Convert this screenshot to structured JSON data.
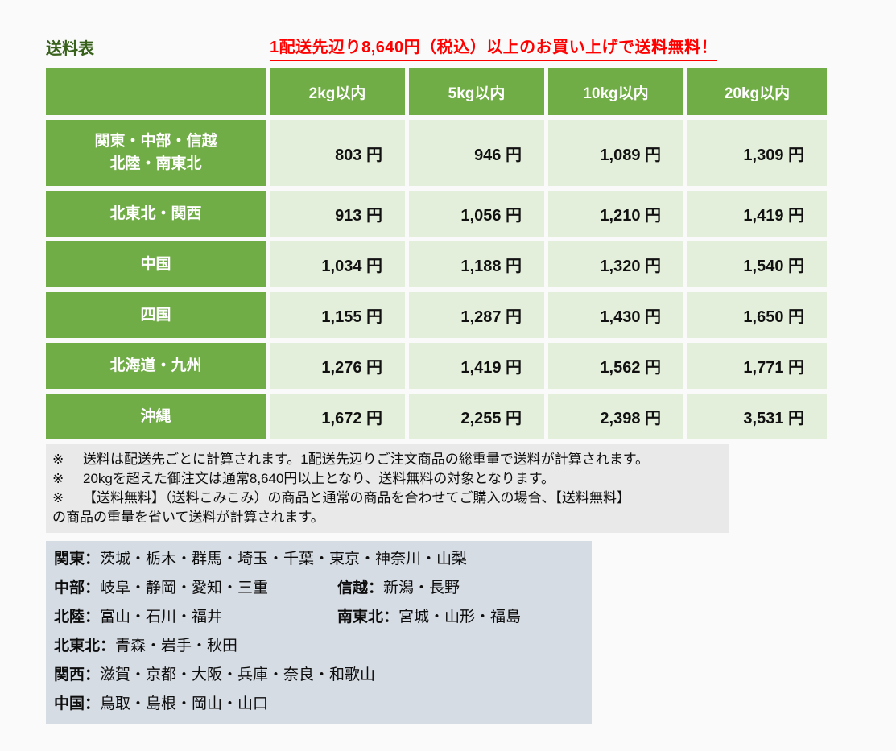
{
  "page": {
    "title": "送料表",
    "free_shipping_notice": "1配送先辺り8,640円（税込）以上のお買い上げで送料無料！"
  },
  "colors": {
    "title_green": "#38611c",
    "notice_red": "#ff0000",
    "header_green": "#71ad47",
    "cell_light_green": "#e3efdb",
    "notes_gray": "#e9e9e9",
    "legend_blue_gray": "#d6dce4",
    "page_background": "#fafafa"
  },
  "table": {
    "columns": [
      "2kg以内",
      "5kg以内",
      "10kg以内",
      "20kg以内"
    ],
    "rows": [
      {
        "region": "関東・中部・信越\n北陸・南東北",
        "values": [
          "803 円",
          "946 円",
          "1,089 円",
          "1,309 円"
        ]
      },
      {
        "region": "北東北・関西",
        "values": [
          "913 円",
          "1,056 円",
          "1,210 円",
          "1,419 円"
        ]
      },
      {
        "region": "中国",
        "values": [
          "1,034 円",
          "1,188 円",
          "1,320 円",
          "1,540 円"
        ]
      },
      {
        "region": "四国",
        "values": [
          "1,155 円",
          "1,287 円",
          "1,430 円",
          "1,650 円"
        ]
      },
      {
        "region": "北海道・九州",
        "values": [
          "1,276 円",
          "1,419 円",
          "1,562 円",
          "1,771 円"
        ]
      },
      {
        "region": "沖縄",
        "values": [
          "1,672 円",
          "2,255 円",
          "2,398 円",
          "3,531 円"
        ]
      }
    ]
  },
  "notes": {
    "lines": [
      {
        "marker": "※",
        "text": "送料は配送先ごとに計算されます。1配送先辺りご注文商品の総重量で送料が計算されます。"
      },
      {
        "marker": "※",
        "text": "20kgを超えた御注文は通常8,640円以上となり、送料無料の対象となります。"
      },
      {
        "marker": "※",
        "text": "【送料無料】（送料こみこみ）の商品と通常の商品を合わせてご購入の場合、【送料無料】"
      },
      {
        "marker": "",
        "text": "の商品の重量を省いて送料が計算されます。"
      }
    ]
  },
  "legend": {
    "lines": [
      {
        "segments": [
          {
            "label": "関東：",
            "items": "茨城・栃木・群馬・埼玉・千葉・東京・神奈川・山梨"
          }
        ]
      },
      {
        "segments": [
          {
            "label": "中部：",
            "items": "岐阜・静岡・愛知・三重"
          },
          {
            "label": "信越：",
            "items": "新潟・長野"
          }
        ]
      },
      {
        "segments": [
          {
            "label": "北陸：",
            "items": "富山・石川・福井"
          },
          {
            "label": "南東北：",
            "items": "宮城・山形・福島"
          }
        ]
      },
      {
        "segments": [
          {
            "label": "北東北：",
            "items": "青森・岩手・秋田"
          }
        ]
      },
      {
        "segments": [
          {
            "label": "関西：",
            "items": "滋賀・京都・大阪・兵庫・奈良・和歌山"
          }
        ]
      },
      {
        "segments": [
          {
            "label": "中国：",
            "items": "鳥取・島根・岡山・山口"
          }
        ]
      }
    ]
  }
}
